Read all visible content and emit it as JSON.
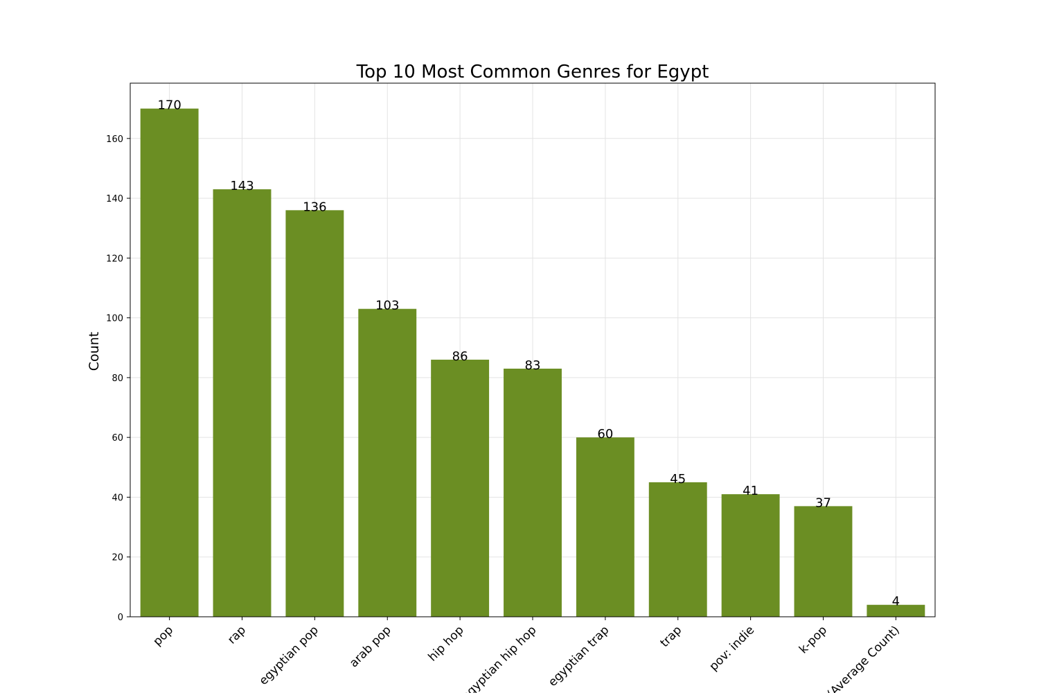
{
  "chart_data": {
    "type": "bar",
    "title": "Top 10 Most Common Genres for Egypt",
    "xlabel": "",
    "ylabel": "Count",
    "categories": [
      "pop",
      "rap",
      "egyptian pop",
      "arab pop",
      "hip hop",
      "egyptian hip hop",
      "egyptian trap",
      "trap",
      "pov: indie",
      "k-pop",
      "(Average Count)"
    ],
    "values": [
      170,
      143,
      136,
      103,
      86,
      83,
      60,
      45,
      41,
      37,
      4
    ],
    "ylim": [
      0,
      178.5
    ],
    "yticks": [
      0,
      20,
      40,
      60,
      80,
      100,
      120,
      140,
      160
    ],
    "grid": true,
    "bar_color": "#6b8e23"
  }
}
